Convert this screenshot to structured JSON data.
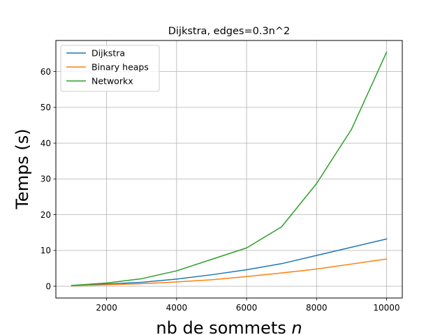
{
  "chart_data": {
    "type": "line",
    "title": "Dijkstra, edges=0.3n^2",
    "xlabel_main": "nb de sommets ",
    "xlabel_var": "n",
    "ylabel": "Temps (s)",
    "x": [
      1000,
      2000,
      3000,
      4000,
      5000,
      6000,
      7000,
      8000,
      9000,
      10000
    ],
    "series": [
      {
        "name": "Dijkstra",
        "color": "#1f77b4",
        "values": [
          0.1,
          0.6,
          1.1,
          2.0,
          3.2,
          4.6,
          6.3,
          8.6,
          10.9,
          13.2
        ]
      },
      {
        "name": "Binary heaps",
        "color": "#ff7f0e",
        "values": [
          0.1,
          0.4,
          0.7,
          1.2,
          1.8,
          2.7,
          3.7,
          4.8,
          6.2,
          7.6
        ]
      },
      {
        "name": "Networkx",
        "color": "#2ca02c",
        "values": [
          0.2,
          0.9,
          2.1,
          4.3,
          7.5,
          10.7,
          16.6,
          28.7,
          43.9,
          65.4
        ]
      }
    ],
    "xlim": [
      550,
      10450
    ],
    "ylim": [
      -3.3,
      68.7
    ],
    "xticks": [
      2000,
      4000,
      6000,
      8000,
      10000
    ],
    "yticks": [
      0,
      10,
      20,
      30,
      40,
      50,
      60
    ],
    "grid": true,
    "legend_position": "upper-left"
  }
}
